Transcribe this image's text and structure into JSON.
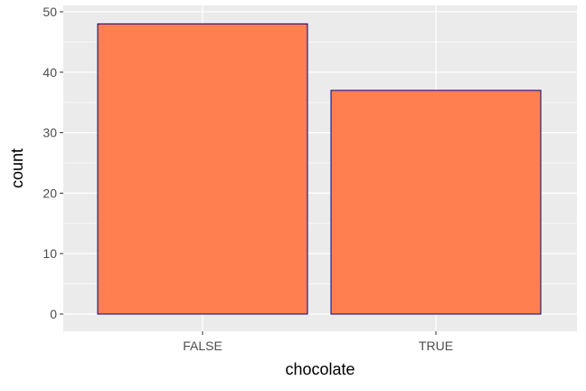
{
  "chart_data": {
    "type": "bar",
    "title": "",
    "xlabel": "chocolate",
    "ylabel": "count",
    "categories": [
      "FALSE",
      "TRUE"
    ],
    "values": [
      48,
      37
    ],
    "ylim": [
      0,
      50
    ],
    "yticks": [
      0,
      10,
      20,
      30,
      40,
      50
    ],
    "grid": true,
    "legend": "none",
    "colors": {
      "bar_fill": "#FF7F50",
      "bar_outline": "#000080",
      "panel_background": "#EBEBEB",
      "grid": "#FFFFFF",
      "tick_label": "#4D4D4D",
      "tick_mark": "#333333"
    }
  }
}
